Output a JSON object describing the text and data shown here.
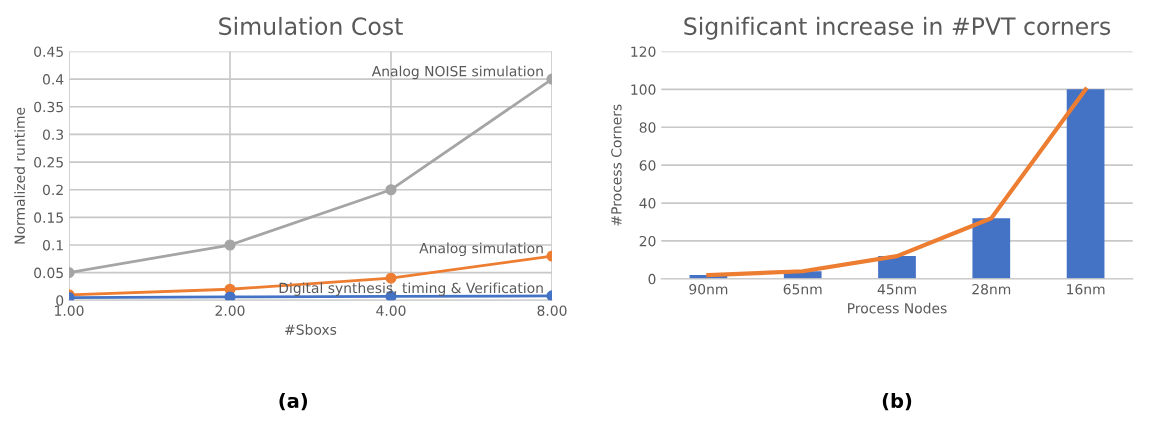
{
  "chart_data": [
    {
      "type": "line",
      "title": "Simulation Cost",
      "xlabel": "#Sboxs",
      "ylabel": "Normalized runtime",
      "categories": [
        "1.00",
        "2.00",
        "4.00",
        "8.00"
      ],
      "series": [
        {
          "name": "Analog NOISE simulation",
          "color": "#a5a5a5",
          "values": [
            0.05,
            0.1,
            0.2,
            0.4
          ]
        },
        {
          "name": "Analog simulation",
          "color": "#ed7d31",
          "values": [
            0.01,
            0.02,
            0.04,
            0.08
          ]
        },
        {
          "name": "Digital synthesis, timing & Verification",
          "color": "#4472c4",
          "values": [
            0.005,
            0.006,
            0.007,
            0.008
          ]
        }
      ],
      "ylim": [
        0,
        0.45
      ],
      "yticks": [
        0,
        0.05,
        0.1,
        0.15,
        0.2,
        0.25,
        0.3,
        0.35,
        0.4,
        0.45
      ],
      "grid": true,
      "marker": "circle",
      "annotations": [
        "(a)"
      ]
    },
    {
      "type": "bar",
      "title": "Significant increase in #PVT corners",
      "xlabel": "Process Nodes",
      "ylabel": "#Process Corners",
      "categories": [
        "90nm",
        "65nm",
        "45nm",
        "28nm",
        "16nm"
      ],
      "series": [
        {
          "color": "#4472c4",
          "values": [
            2,
            4,
            12,
            32,
            100
          ]
        },
        {
          "type": "line",
          "color": "#ed7d31",
          "values": [
            2,
            4,
            12,
            32,
            100
          ]
        }
      ],
      "ylim": [
        0,
        120
      ],
      "yticks": [
        0,
        20,
        40,
        60,
        80,
        100,
        120
      ],
      "grid": "y",
      "annotations": [
        "(b)"
      ]
    }
  ]
}
